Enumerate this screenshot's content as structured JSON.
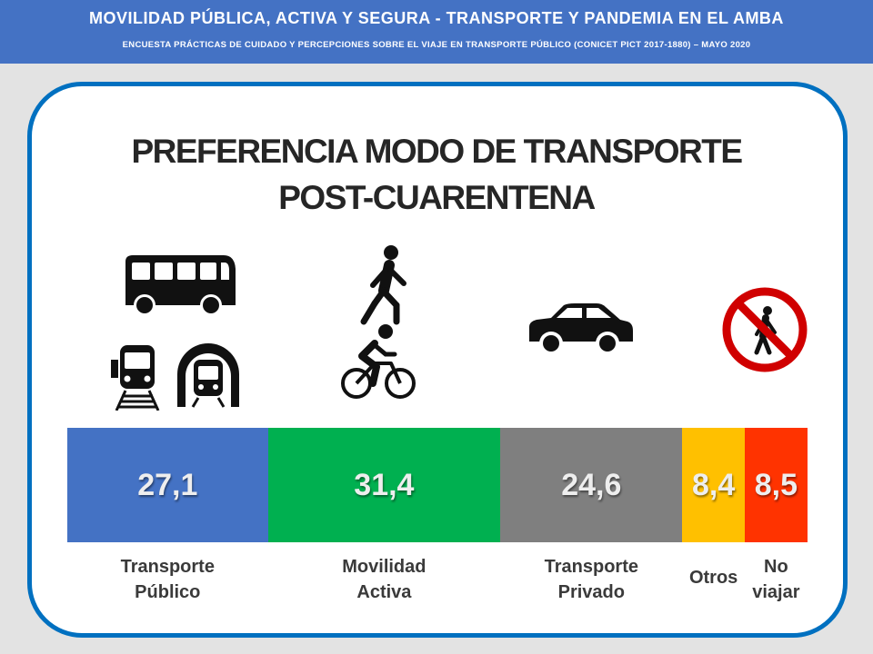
{
  "header": {
    "title": "MOVILIDAD PÚBLICA, ACTIVA Y SEGURA - TRANSPORTE Y PANDEMIA EN EL AMBA",
    "subtitle": "ENCUESTA PRÁCTICAS DE CUIDADO Y PERCEPCIONES SOBRE EL VIAJE EN TRANSPORTE PÚBLICO (CONICET PICT 2017-1880) – MAYO 2020"
  },
  "colors": {
    "header_bg": "#4472c4",
    "card_border": "#0070c0",
    "transporte_publico": "#4472c4",
    "movilidad_activa": "#00b050",
    "transporte_privado": "#7f7f7f",
    "otros": "#ffc000",
    "no_viajar": "#ff3300"
  },
  "icons": [
    "bus-icon",
    "train-icon",
    "subway-icon",
    "pedestrian-icon",
    "bicycle-icon",
    "car-icon",
    "no-walking-icon"
  ],
  "chart_data": {
    "type": "bar",
    "subtype": "stacked-100",
    "title_line1": "PREFERENCIA MODO DE TRANSPORTE",
    "title_line2": "POST-CUARENTENA",
    "categories": [
      "Transporte\nPúblico",
      "Movilidad\nActiva",
      "Transporte\nPrivado",
      "Otros",
      "No\nviajar"
    ],
    "values": [
      27.1,
      31.4,
      24.6,
      8.4,
      8.5
    ],
    "value_labels": [
      "27,1",
      "31,4",
      "24,6",
      "8,4",
      "8,5"
    ],
    "colors": [
      "#4472c4",
      "#00b050",
      "#7f7f7f",
      "#ffc000",
      "#ff3300"
    ],
    "legend": "none",
    "grid": false
  }
}
